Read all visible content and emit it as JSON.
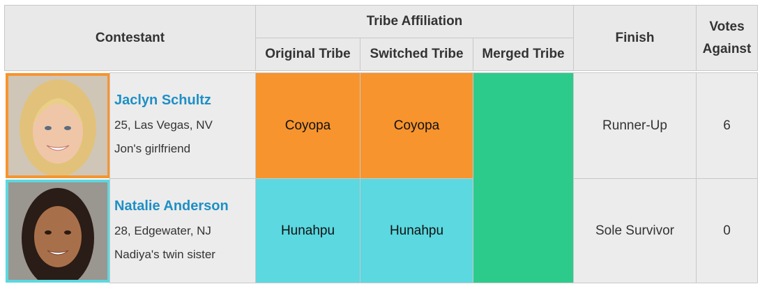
{
  "table": {
    "headers": {
      "contestant": "Contestant",
      "tribe_affiliation": "Tribe Affiliation",
      "original_tribe": "Original Tribe",
      "switched_tribe": "Switched Tribe",
      "merged_tribe": "Merged Tribe",
      "finish": "Finish",
      "votes_against": "Votes Against"
    },
    "rows": [
      {
        "name": "Jaclyn Schultz",
        "details": "25, Las Vegas, NV",
        "note": "Jon's girlfriend",
        "original_tribe": "Coyopa",
        "switched_tribe": "Coyopa",
        "finish": "Runner-Up",
        "votes_against": 6
      },
      {
        "name": "Natalie Anderson",
        "details": "28, Edgewater, NJ",
        "note": "Nadiya's twin sister",
        "original_tribe": "Hunahpu",
        "switched_tribe": "Hunahpu",
        "finish": "Sole Survivor",
        "votes_against": 0
      }
    ]
  }
}
